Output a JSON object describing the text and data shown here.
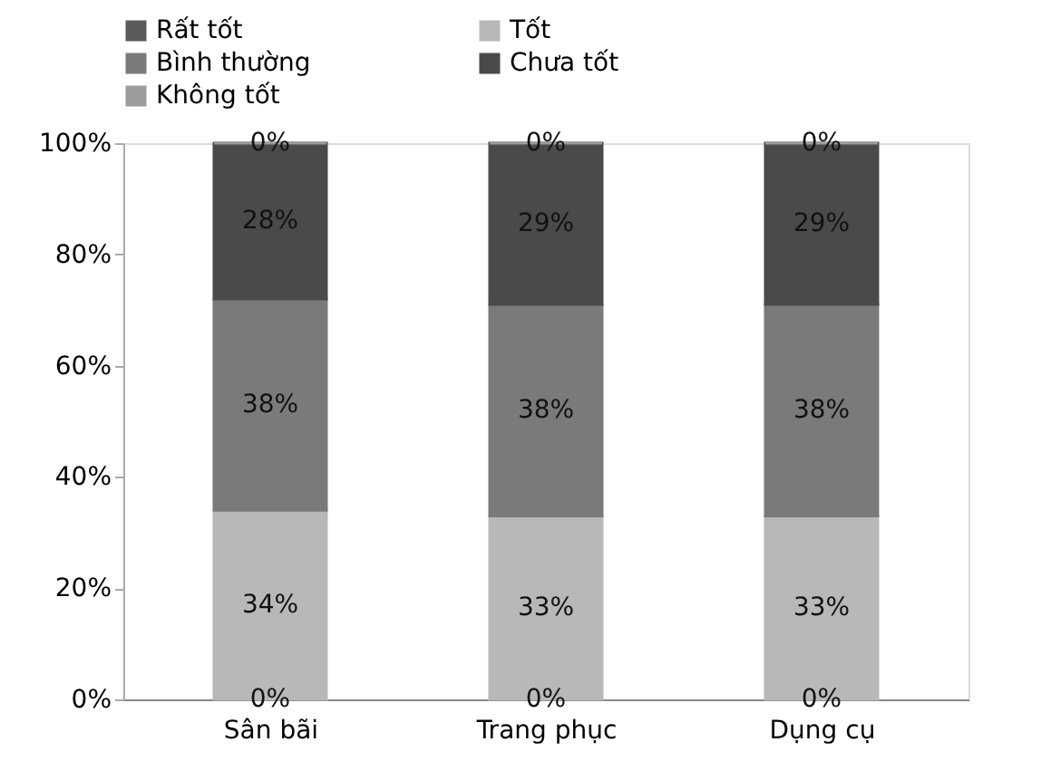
{
  "chart_data": {
    "type": "bar",
    "stacked": true,
    "categories": [
      "Sân bãi",
      "Trang phục",
      "Dụng cụ"
    ],
    "series": [
      {
        "name": "Rất tốt",
        "color": "#5a5a5a",
        "values": [
          0,
          0,
          0
        ],
        "value_labels": [
          "0%",
          "0%",
          "0%"
        ]
      },
      {
        "name": "Tốt",
        "color": "#b8b8b8",
        "values": [
          34,
          33,
          33
        ],
        "value_labels": [
          "34%",
          "33%",
          "33%"
        ]
      },
      {
        "name": "Bình thường",
        "color": "#7a7a7a",
        "values": [
          38,
          38,
          38
        ],
        "value_labels": [
          "38%",
          "38%",
          "38%"
        ]
      },
      {
        "name": "Chưa tốt",
        "color": "#4a4a4a",
        "values": [
          28,
          29,
          29
        ],
        "value_labels": [
          "28%",
          "29%",
          "29%"
        ]
      },
      {
        "name": "Không tốt",
        "color": "#9c9c9c",
        "values": [
          0,
          0,
          0
        ],
        "value_labels": [
          "0%",
          "0%",
          "0%"
        ]
      }
    ],
    "ylim": [
      0,
      100
    ],
    "yticks": [
      {
        "value": 0,
        "label": "0%"
      },
      {
        "value": 20,
        "label": "20%"
      },
      {
        "value": 40,
        "label": "40%"
      },
      {
        "value": 60,
        "label": "60%"
      },
      {
        "value": 80,
        "label": "80%"
      },
      {
        "value": 100,
        "label": "100%"
      }
    ],
    "grid": false,
    "legend": "top"
  }
}
